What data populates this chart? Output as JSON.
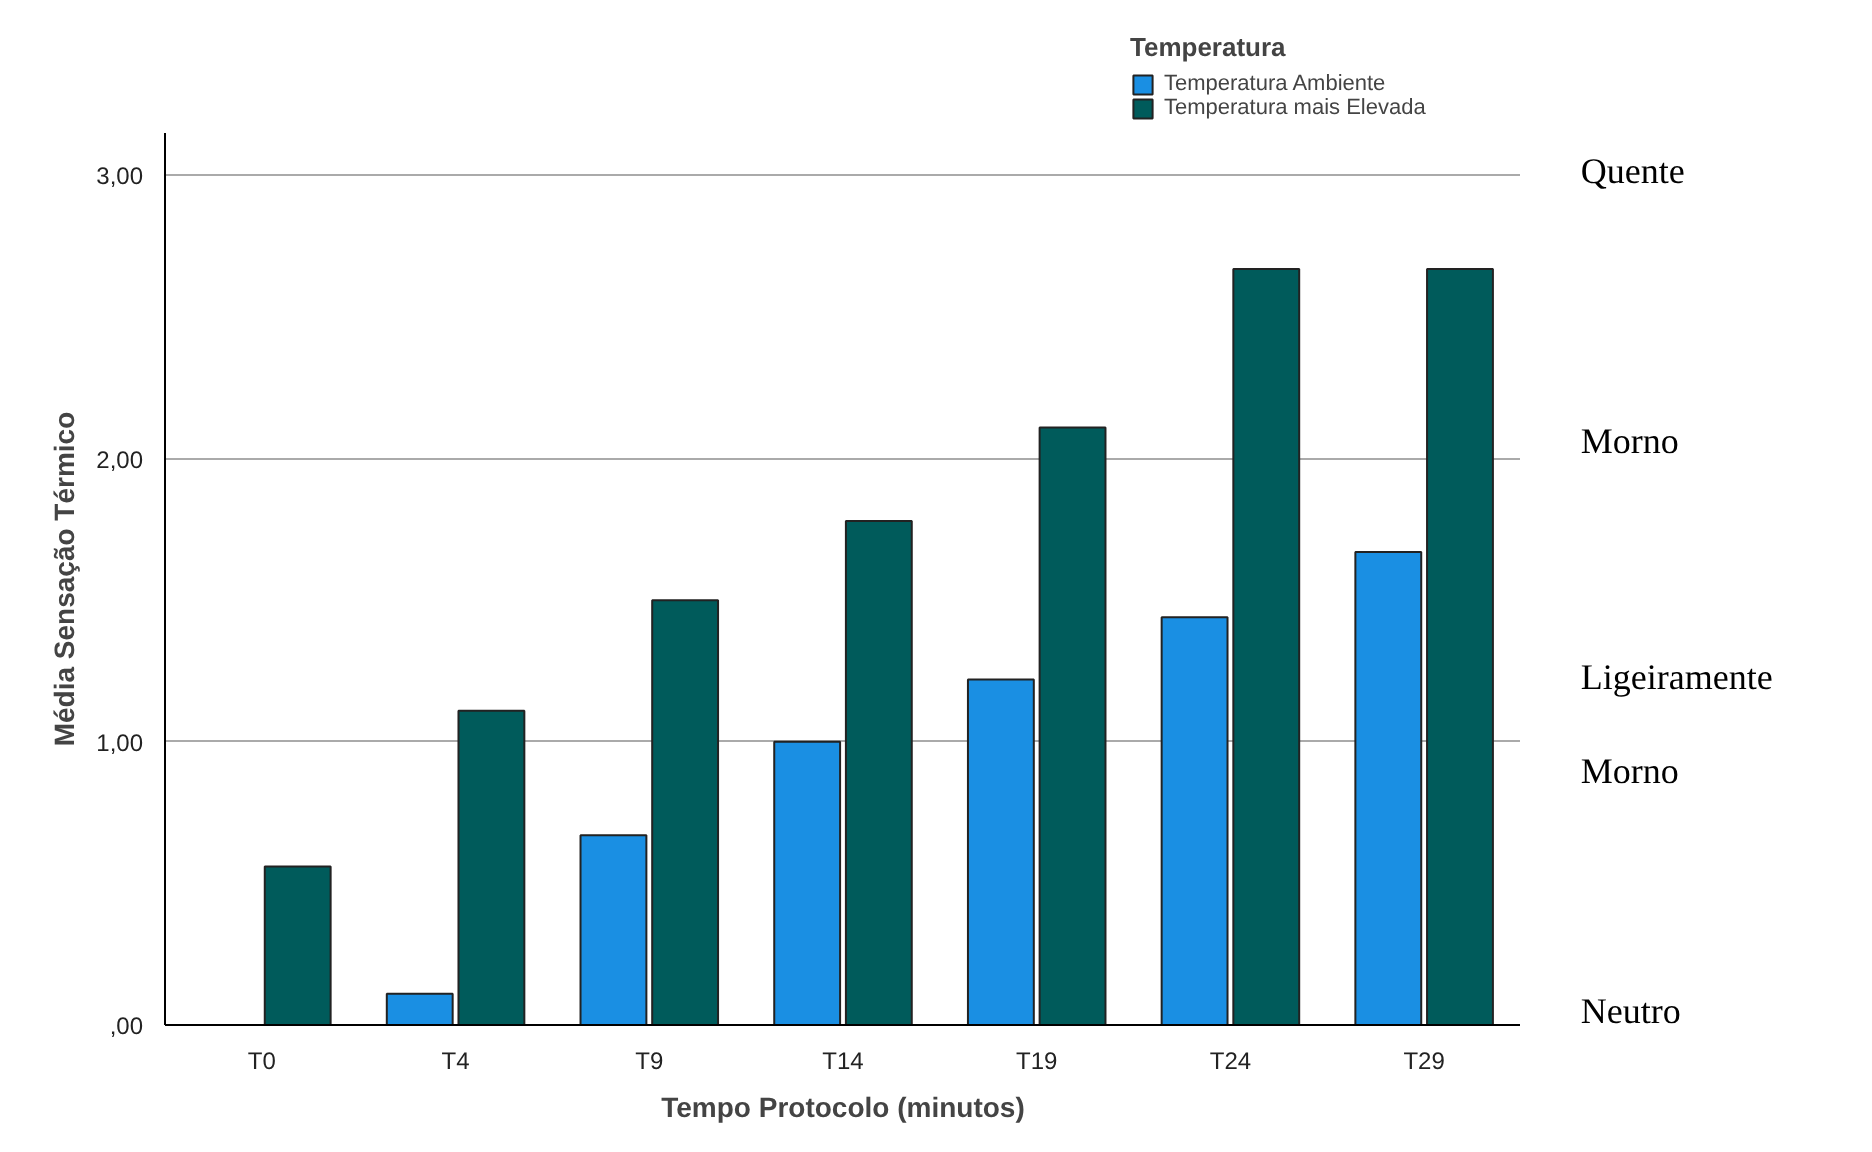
{
  "chart_data": {
    "type": "bar",
    "xlabel": "Tempo Protocolo (minutos)",
    "ylabel": "Média Sensação Térmico",
    "legend_title": "Temperatura",
    "categories": [
      "T0",
      "T4",
      "T9",
      "T14",
      "T19",
      "T24",
      "T29"
    ],
    "series": [
      {
        "name": "Temperatura Ambiente",
        "color": "#1a8fe3",
        "values": [
          0,
          0.11,
          0.67,
          1.0,
          1.22,
          1.44,
          1.67
        ]
      },
      {
        "name": "Temperatura mais Elevada",
        "color": "#005b5b",
        "values": [
          0.56,
          1.11,
          1.5,
          1.78,
          2.11,
          2.67,
          2.67
        ]
      }
    ],
    "ylim": [
      0,
      3.15
    ],
    "yticks": [
      {
        "value": 0,
        "label": ",00"
      },
      {
        "value": 1,
        "label": "1,00"
      },
      {
        "value": 2,
        "label": "2,00"
      },
      {
        "value": 3,
        "label": "3,00"
      }
    ],
    "grid": "y",
    "legend": "top right",
    "annotations": [
      "Quente",
      "Morno",
      "Ligeiramente",
      "Morno",
      "Neutro"
    ]
  }
}
